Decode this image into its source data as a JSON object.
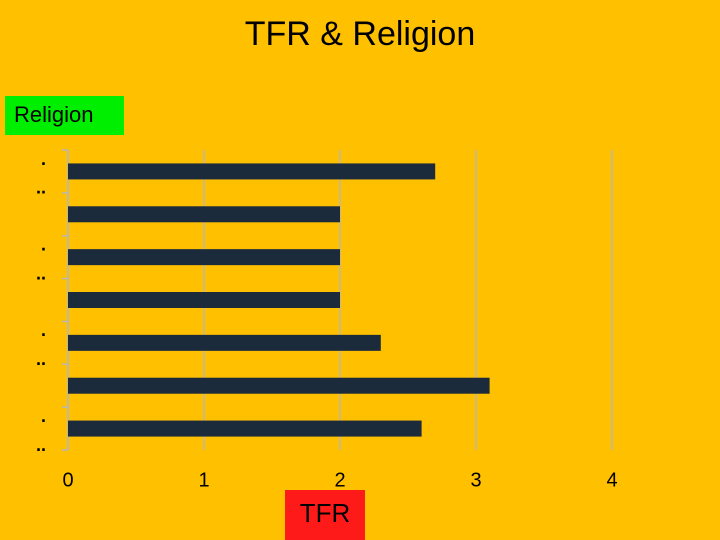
{
  "chart_data": {
    "type": "bar",
    "orientation": "horizontal",
    "title": "TFR & Religion",
    "ylabel": "Religion",
    "xlabel": "TFR",
    "categories": [
      null,
      null,
      null,
      null,
      null,
      null,
      null
    ],
    "values": [
      2.7,
      2.0,
      2.0,
      2.0,
      2.3,
      3.1,
      2.6
    ],
    "color": "#1c2b3c",
    "xlim": [
      0,
      4
    ],
    "xticks": [
      0,
      1,
      2,
      3,
      4
    ],
    "grid": true,
    "annotations": [
      ".",
      "..",
      ".",
      "..",
      ".",
      "..",
      ".",
      ".."
    ]
  }
}
